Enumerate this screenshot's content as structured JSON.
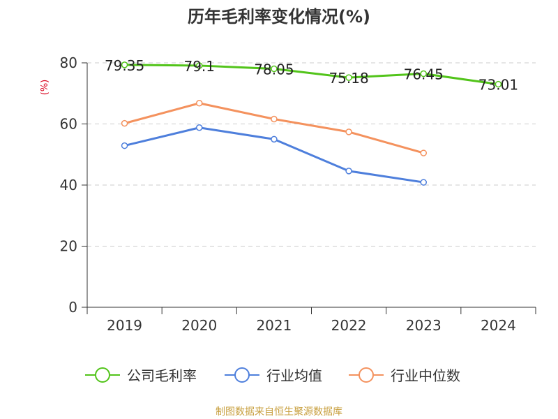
{
  "chart_data": {
    "type": "line",
    "title": "历年毛利率变化情况(%)",
    "ylabel": "(%)",
    "categories": [
      "2019",
      "2020",
      "2021",
      "2022",
      "2023",
      "2024"
    ],
    "ylim": [
      0,
      80
    ],
    "yticks": [
      "0",
      "20",
      "40",
      "60",
      "80"
    ],
    "grid": true,
    "legend_position": "bottom",
    "series": [
      {
        "name": "公司毛利率",
        "color": "#52c41a",
        "values": [
          79.35,
          79.1,
          78.05,
          75.18,
          76.45,
          73.01
        ],
        "labels": [
          "79.35",
          "79.1",
          "78.05",
          "75.18",
          "76.45",
          "73.01"
        ]
      },
      {
        "name": "行业均值",
        "color": "#4e7fdc",
        "values": [
          52.9,
          58.8,
          55.0,
          44.6,
          40.9,
          null
        ]
      },
      {
        "name": "行业中位数",
        "color": "#f4925e",
        "values": [
          60.2,
          66.8,
          61.6,
          57.4,
          50.5,
          null
        ]
      }
    ]
  },
  "colors": {
    "ylabel": "#d9001b",
    "source": "#c8a040",
    "axis": "#333333",
    "grid": "#cccccc"
  },
  "source_text": "制图数据来自恒生聚源数据库"
}
